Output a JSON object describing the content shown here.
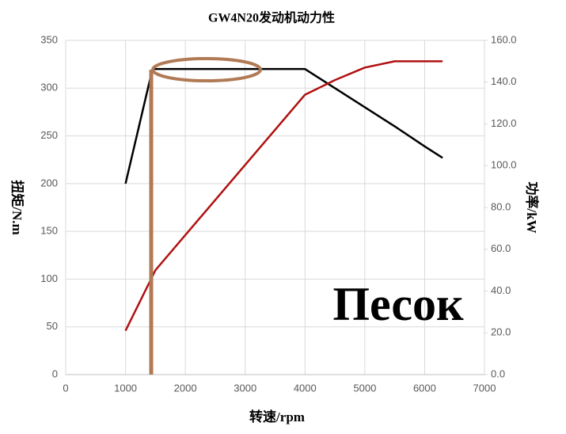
{
  "chart_data": {
    "type": "line",
    "title": "GW4N20发动机动力性",
    "x_label": "转速/rpm",
    "y_label": "扭矩/N.m",
    "y2_label": "功率/kW",
    "annotation": "Песок",
    "xlim": [
      0,
      7000
    ],
    "xticks": [
      0,
      1000,
      2000,
      3000,
      4000,
      5000,
      6000,
      7000
    ],
    "ylim": [
      0,
      350
    ],
    "yticks": [
      0,
      50,
      100,
      150,
      200,
      250,
      300,
      350
    ],
    "y2lim": [
      0,
      160
    ],
    "y2ticks": [
      {
        "value": 0,
        "label": "0.0"
      },
      {
        "value": 20,
        "label": "20.0"
      },
      {
        "value": 40,
        "label": "40.0"
      },
      {
        "value": 60,
        "label": "60.0"
      },
      {
        "value": 80,
        "label": "80.0"
      },
      {
        "value": 100,
        "label": "100.0"
      },
      {
        "value": 120,
        "label": "120.0"
      },
      {
        "value": 140,
        "label": "140.0"
      },
      {
        "value": 160,
        "label": "160.0"
      }
    ],
    "grid": true,
    "series": [
      {
        "color": "#000000",
        "x": [
          1000,
          1450,
          4000,
          5500,
          6000,
          6300
        ],
        "values": [
          200,
          320,
          320,
          260,
          239,
          227
        ]
      },
      {
        "color": "#b01010",
        "axis": "y2",
        "x": [
          1000,
          1500,
          4000,
          4500,
          5000,
          5500,
          6300
        ],
        "values": [
          21,
          50,
          134,
          141,
          147,
          150,
          150
        ]
      }
    ]
  }
}
